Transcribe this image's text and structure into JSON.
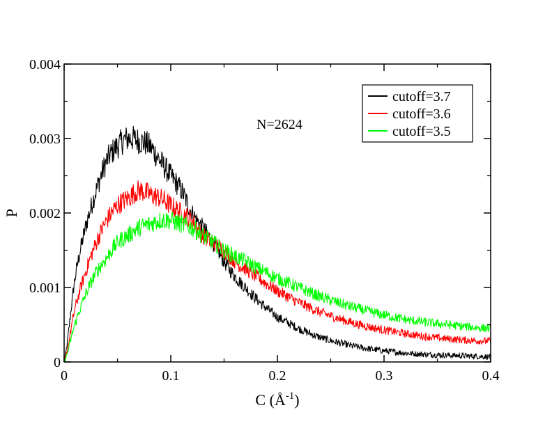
{
  "chart_data": {
    "type": "line",
    "title": "",
    "xlabel_main": "C (",
    "xlabel_unit": "Å",
    "xlabel_exp": "-1",
    "xlabel_close": ")",
    "ylabel": "P",
    "xlim": [
      0,
      0.4
    ],
    "ylim": [
      0,
      0.004
    ],
    "x_ticks": [
      {
        "value": 0,
        "label": "0"
      },
      {
        "value": 0.1,
        "label": "0.1"
      },
      {
        "value": 0.2,
        "label": "0.2"
      },
      {
        "value": 0.3,
        "label": "0.3"
      },
      {
        "value": 0.4,
        "label": "0.4"
      }
    ],
    "y_ticks": [
      {
        "value": 0,
        "label": "0"
      },
      {
        "value": 0.001,
        "label": "0.001"
      },
      {
        "value": 0.002,
        "label": "0.002"
      },
      {
        "value": 0.003,
        "label": "0.003"
      },
      {
        "value": 0.004,
        "label": "0.004"
      }
    ],
    "grid": false,
    "legend_position": "top-right",
    "annotation": "N=2624",
    "series": [
      {
        "name": "cutoff=3.7",
        "color": "#000000",
        "x": [
          0,
          0.01,
          0.02,
          0.03,
          0.04,
          0.05,
          0.06,
          0.07,
          0.08,
          0.09,
          0.1,
          0.11,
          0.12,
          0.13,
          0.14,
          0.15,
          0.16,
          0.17,
          0.18,
          0.19,
          0.2,
          0.22,
          0.24,
          0.26,
          0.28,
          0.3,
          0.32,
          0.34,
          0.36,
          0.38,
          0.4
        ],
        "y": [
          0.0,
          0.0011,
          0.0018,
          0.0023,
          0.0027,
          0.0029,
          0.003,
          0.00297,
          0.0029,
          0.0027,
          0.0025,
          0.0023,
          0.002,
          0.0018,
          0.0016,
          0.00135,
          0.00115,
          0.001,
          0.00085,
          0.00072,
          0.0006,
          0.00045,
          0.00033,
          0.00025,
          0.00019,
          0.00015,
          0.00012,
          0.0001,
          9e-05,
          8e-05,
          7e-05
        ]
      },
      {
        "name": "cutoff=3.6",
        "color": "#ff0000",
        "x": [
          0,
          0.01,
          0.02,
          0.03,
          0.04,
          0.05,
          0.06,
          0.07,
          0.08,
          0.09,
          0.1,
          0.11,
          0.12,
          0.13,
          0.14,
          0.15,
          0.16,
          0.17,
          0.18,
          0.19,
          0.2,
          0.22,
          0.24,
          0.26,
          0.28,
          0.3,
          0.32,
          0.34,
          0.36,
          0.38,
          0.4
        ],
        "y": [
          0.0,
          0.0007,
          0.0012,
          0.0016,
          0.0019,
          0.0021,
          0.0022,
          0.0023,
          0.00225,
          0.0022,
          0.0021,
          0.002,
          0.0019,
          0.0017,
          0.0016,
          0.0015,
          0.00135,
          0.00125,
          0.00115,
          0.00105,
          0.00095,
          0.0008,
          0.00067,
          0.00057,
          0.00049,
          0.00043,
          0.00038,
          0.00034,
          0.00031,
          0.00029,
          0.00028
        ]
      },
      {
        "name": "cutoff=3.5",
        "color": "#00ff00",
        "x": [
          0,
          0.01,
          0.02,
          0.03,
          0.04,
          0.05,
          0.06,
          0.07,
          0.08,
          0.09,
          0.1,
          0.11,
          0.12,
          0.13,
          0.14,
          0.15,
          0.16,
          0.17,
          0.18,
          0.19,
          0.2,
          0.22,
          0.24,
          0.26,
          0.28,
          0.3,
          0.32,
          0.34,
          0.36,
          0.38,
          0.4
        ],
        "y": [
          0.0,
          0.0005,
          0.0009,
          0.0012,
          0.0014,
          0.0016,
          0.0017,
          0.0018,
          0.00185,
          0.0019,
          0.0019,
          0.00185,
          0.0018,
          0.0017,
          0.0016,
          0.0015,
          0.00142,
          0.00135,
          0.00127,
          0.0012,
          0.00112,
          0.001,
          0.00088,
          0.00078,
          0.0007,
          0.00063,
          0.00057,
          0.00053,
          0.0005,
          0.00047,
          0.00045
        ]
      }
    ]
  }
}
